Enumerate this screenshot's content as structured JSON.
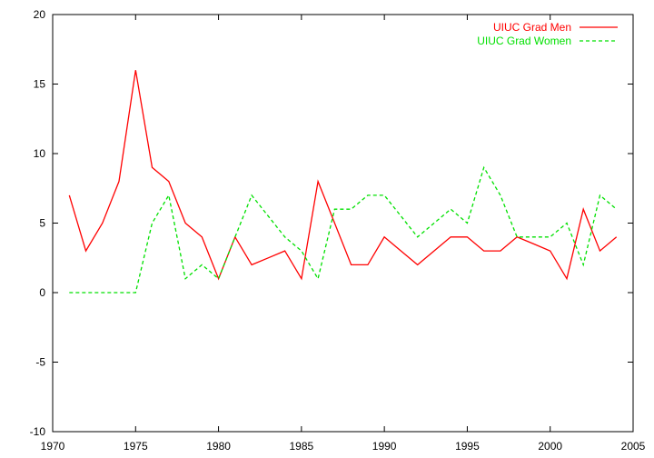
{
  "chart_data": {
    "type": "line",
    "title": "",
    "xlabel": "",
    "ylabel": "",
    "xlim": [
      1970,
      2005
    ],
    "ylim": [
      -10,
      20
    ],
    "xticks": [
      1970,
      1975,
      1980,
      1985,
      1990,
      1995,
      2000,
      2005
    ],
    "yticks": [
      -10,
      -5,
      0,
      5,
      10,
      15,
      20
    ],
    "grid": false,
    "legend_position": "top-right",
    "series": [
      {
        "name": "UIUC Grad Men",
        "color": "#ff0000",
        "dash": "solid",
        "x": [
          1971,
          1972,
          1973,
          1974,
          1975,
          1976,
          1977,
          1978,
          1979,
          1980,
          1981,
          1982,
          1983,
          1984,
          1985,
          1986,
          1987,
          1988,
          1989,
          1990,
          1991,
          1992,
          1993,
          1994,
          1995,
          1996,
          1997,
          1998,
          1999,
          2000,
          2001,
          2002,
          2003,
          2004
        ],
        "values": [
          7,
          3,
          5,
          8,
          16,
          9,
          8,
          5,
          4,
          1,
          4,
          2,
          2.5,
          3,
          1,
          8,
          5,
          2,
          2,
          4,
          3,
          2,
          3,
          4,
          4,
          3,
          3,
          4,
          3.5,
          3,
          1,
          6,
          3,
          4
        ]
      },
      {
        "name": "UIUC Grad Women",
        "color": "#00e000",
        "dash": "dashed",
        "x": [
          1971,
          1972,
          1973,
          1974,
          1975,
          1976,
          1977,
          1978,
          1979,
          1980,
          1981,
          1982,
          1983,
          1984,
          1985,
          1986,
          1987,
          1988,
          1989,
          1990,
          1991,
          1992,
          1993,
          1994,
          1995,
          1996,
          1997,
          1998,
          1999,
          2000,
          2001,
          2002,
          2003,
          2004
        ],
        "values": [
          0,
          0,
          0,
          0,
          0,
          5,
          7,
          1,
          2,
          1,
          4,
          7,
          5.5,
          4,
          3,
          1,
          6,
          6,
          7,
          7,
          5.5,
          4,
          5,
          6,
          5,
          9,
          7,
          4,
          4,
          4,
          5,
          2,
          7,
          6
        ]
      }
    ]
  }
}
